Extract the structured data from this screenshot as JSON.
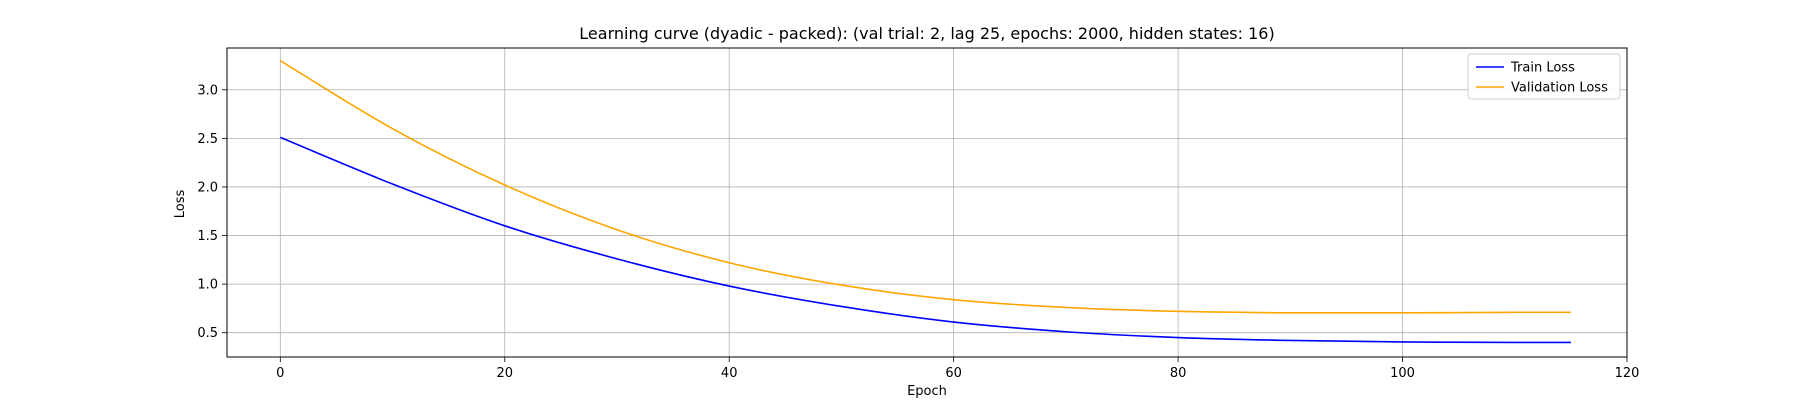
{
  "chart_data": {
    "type": "line",
    "title": "Learning curve (dyadic - packed): (val trial: 2, lag 25, epochs: 2000, hidden states: 16)",
    "xlabel": "Epoch",
    "ylabel": "Loss",
    "xlim": [
      -4.75,
      120
    ],
    "ylim": [
      0.25,
      3.43
    ],
    "xticks": [
      0,
      20,
      40,
      60,
      80,
      100,
      120
    ],
    "xtick_labels": [
      "0",
      "20",
      "40",
      "60",
      "80",
      "100",
      "120"
    ],
    "yticks": [
      0.5,
      1.0,
      1.5,
      2.0,
      2.5,
      3.0
    ],
    "ytick_labels": [
      "0.5",
      "1.0",
      "1.5",
      "2.0",
      "2.5",
      "3.0"
    ],
    "grid": true,
    "legend_position": "top-right",
    "series": [
      {
        "name": "Train Loss",
        "color": "#0000ff",
        "x": [
          0,
          10,
          20,
          30,
          40,
          50,
          60,
          70,
          80,
          90,
          100,
          110,
          115
        ],
        "y": [
          2.51,
          2.03,
          1.6,
          1.26,
          0.98,
          0.77,
          0.61,
          0.51,
          0.45,
          0.42,
          0.405,
          0.4,
          0.4
        ]
      },
      {
        "name": "Validation Loss",
        "color": "#ffa500",
        "x": [
          0,
          10,
          20,
          30,
          40,
          50,
          60,
          70,
          80,
          90,
          100,
          110,
          115
        ],
        "y": [
          3.3,
          2.6,
          2.02,
          1.56,
          1.22,
          0.99,
          0.84,
          0.76,
          0.72,
          0.705,
          0.705,
          0.71,
          0.71
        ]
      }
    ]
  }
}
